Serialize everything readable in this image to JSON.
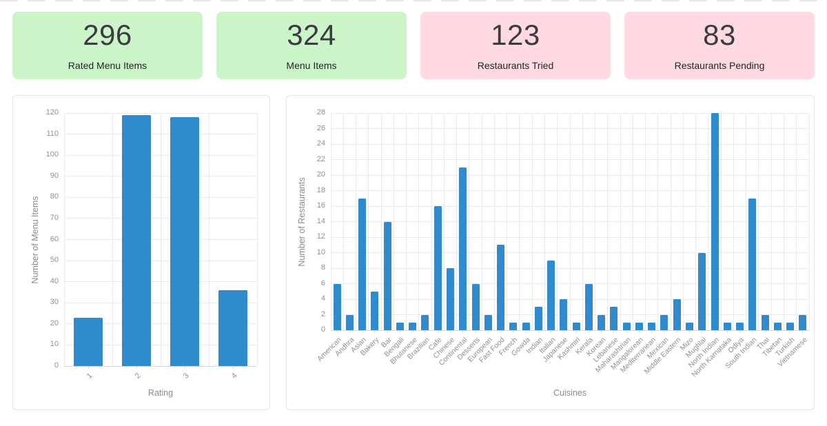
{
  "theme": {
    "accent_blue": "#2f8bcb",
    "card_green": "#ccf4c9",
    "card_pink": "#ffdbe1",
    "tick_text": "#8f8f8f",
    "grid_color": "#ebebeb",
    "baseline_color": "#d6d6d6"
  },
  "stats": {
    "cards": [
      {
        "value": "296",
        "label": "Rated Menu Items",
        "bg": "#ccf4c9"
      },
      {
        "value": "324",
        "label": "Menu Items",
        "bg": "#ccf4c9"
      },
      {
        "value": "123",
        "label": "Restaurants Tried",
        "bg": "#ffdbe1"
      },
      {
        "value": "83",
        "label": "Restaurants Pending",
        "bg": "#ffdbe1"
      }
    ]
  },
  "chart_data": [
    {
      "type": "bar",
      "title": "",
      "categories": [
        "1",
        "2",
        "3",
        "4"
      ],
      "values": [
        23,
        119,
        118,
        36
      ],
      "xlabel": "Rating",
      "ylabel": "Number of Menu Items",
      "ylim": [
        0,
        120
      ],
      "ytick_step": 10,
      "bar_color": "#2f8bcb",
      "grid": true,
      "legend": "none"
    },
    {
      "type": "bar",
      "title": "",
      "categories": [
        "American",
        "Andhra",
        "Asian",
        "Bakery",
        "Bar",
        "Bengali",
        "Bhutanese",
        "Brazilian",
        "Cafe",
        "Chinese",
        "Continental",
        "Desserts",
        "European",
        "Fast Food",
        "French",
        "Gowda",
        "Indian",
        "Italian",
        "Japanese",
        "Kashmiri",
        "Kerala",
        "Korean",
        "Lebanese",
        "Maharashtrian",
        "Mangalorean",
        "Mediterranean",
        "Mexican",
        "Middle Eastern",
        "Mizo",
        "Mughlai",
        "North Indian",
        "North Karnataka",
        "Odiya",
        "South Indian",
        "Thai",
        "Tibetan",
        "Turkish",
        "Vietnamese"
      ],
      "values": [
        6,
        2,
        17,
        5,
        14,
        1,
        1,
        2,
        16,
        8,
        21,
        6,
        2,
        11,
        1,
        1,
        3,
        9,
        4,
        1,
        6,
        2,
        3,
        1,
        1,
        1,
        2,
        4,
        1,
        10,
        28,
        1,
        1,
        17,
        2,
        1,
        1,
        2
      ],
      "xlabel": "Cuisines",
      "ylabel": "Number of Restaurants",
      "ylim": [
        0,
        28
      ],
      "ytick_step": 2,
      "bar_color": "#2f8bcb",
      "grid": true,
      "legend": "none"
    }
  ]
}
